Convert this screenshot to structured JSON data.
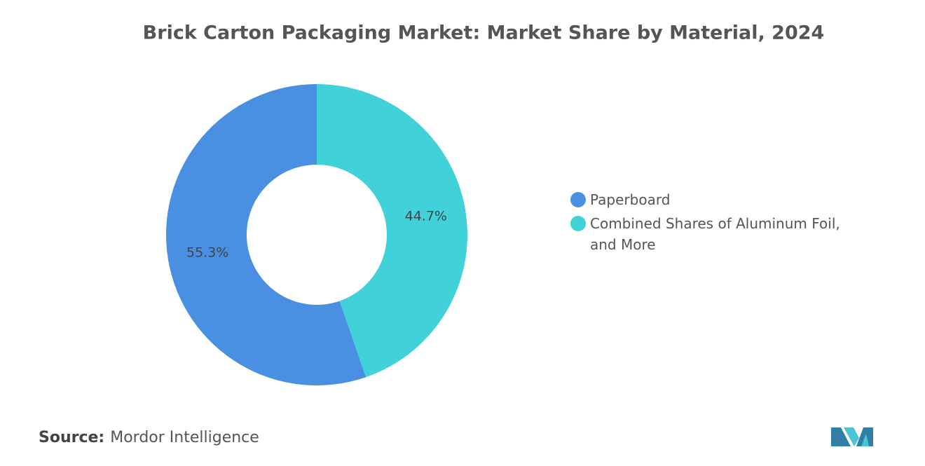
{
  "chart_data": {
    "type": "pie",
    "title": "Brick Carton Packaging Market: Market Share by Material, 2024",
    "categories": [
      "Paperboard",
      "Combined Shares of Aluminum Foil, and More"
    ],
    "values": [
      55.3,
      44.7
    ],
    "value_labels": [
      "55.3%",
      "44.7%"
    ],
    "colors": [
      "#4a90e2",
      "#41d1d9"
    ],
    "legend": "right",
    "source_label": "Source:",
    "source": "Mordor Intelligence"
  }
}
